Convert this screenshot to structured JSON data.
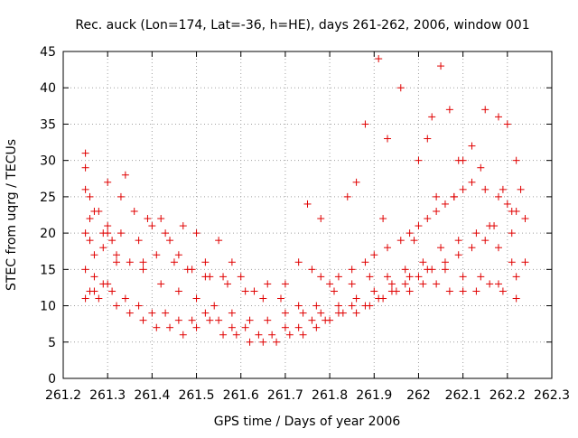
{
  "chart_data": {
    "type": "scatter",
    "title": "Rec. auck (Lon=174, Lat=-36, h=HE), days 261-262, 2006, window 001",
    "xlabel": "GPS time / Days of year 2006",
    "ylabel": "STEC from uqrg / TECUs",
    "xlim": [
      261.2,
      262.3
    ],
    "ylim": [
      0,
      45
    ],
    "xticks": [
      261.2,
      261.3,
      261.4,
      261.5,
      261.6,
      261.7,
      261.8,
      261.9,
      262,
      262.1,
      262.2,
      262.3
    ],
    "xtick_labels": [
      "261.2",
      "261.3",
      "261.4",
      "261.5",
      "261.6",
      "261.7",
      "261.8",
      "261.9",
      "262",
      "262.1",
      "262.2",
      "262.3"
    ],
    "yticks": [
      0,
      5,
      10,
      15,
      20,
      25,
      30,
      35,
      40,
      45
    ],
    "ytick_labels": [
      "0",
      "5",
      "10",
      "15",
      "20",
      "25",
      "30",
      "35",
      "40",
      "45"
    ],
    "grid": true,
    "marker": "plus",
    "color": "#e00000",
    "series": [
      {
        "x": [
          261.25,
          261.25,
          261.25,
          261.25,
          261.26,
          261.26,
          261.27,
          261.27,
          261.28,
          261.29,
          261.3,
          261.31,
          261.32,
          261.34,
          261.36,
          261.38,
          261.4,
          261.42,
          261.44,
          261.46,
          261.48,
          261.5,
          261.52,
          261.55,
          261.58,
          261.6,
          261.63,
          261.66,
          261.7,
          261.73,
          261.76,
          261.78,
          261.8,
          261.82,
          261.85,
          261.88,
          261.9,
          261.93,
          261.96,
          261.98,
          262.0,
          262.02,
          262.04,
          262.06,
          262.08,
          262.1,
          262.12,
          262.15,
          262.18,
          262.2,
          262.22,
          262.24,
          261.25,
          261.26,
          261.28,
          261.3,
          261.32,
          261.35,
          261.38,
          261.41,
          261.44,
          261.47,
          261.5,
          261.53,
          261.56,
          261.59,
          261.62,
          261.65,
          261.68,
          261.71,
          261.74,
          261.77,
          261.8,
          261.83,
          261.86,
          261.89,
          261.92,
          261.95,
          261.98,
          262.01,
          262.04,
          262.07,
          262.1,
          262.13,
          262.16,
          262.19,
          262.22,
          261.25,
          261.27,
          261.29,
          261.31,
          261.34,
          261.37,
          261.4,
          261.43,
          261.46,
          261.49,
          261.52,
          261.55,
          261.58,
          261.61,
          261.64,
          261.67,
          261.7,
          261.73,
          261.76,
          261.79,
          261.82,
          261.85,
          261.88,
          261.91,
          261.94,
          261.97,
          262.0,
          262.03,
          262.06,
          262.09,
          262.12,
          262.15,
          262.18,
          262.21,
          262.24,
          261.26,
          261.29,
          261.32,
          261.35,
          261.38,
          261.42,
          261.46,
          261.5,
          261.54,
          261.58,
          261.62,
          261.66,
          261.7,
          261.74,
          261.78,
          261.82,
          261.86,
          261.9,
          261.94,
          261.98,
          262.02,
          262.06,
          262.1,
          262.14,
          262.18,
          262.22,
          261.27,
          261.3,
          261.33,
          261.37,
          261.41,
          261.45,
          261.49,
          261.53,
          261.57,
          261.61,
          261.65,
          261.69,
          261.73,
          261.77,
          261.81,
          261.85,
          261.89,
          261.93,
          261.97,
          262.01,
          262.05,
          262.09,
          262.13,
          262.17,
          262.21,
          261.88,
          261.91,
          261.96,
          262.0,
          262.03,
          262.05,
          262.07,
          262.09,
          262.12,
          262.15,
          262.18,
          262.2,
          262.22,
          261.84,
          261.86,
          261.93,
          262.02,
          262.1,
          262.14,
          262.19,
          262.23,
          261.75,
          261.78,
          261.92,
          261.99,
          262.04,
          262.08,
          262.16,
          262.21,
          261.3,
          261.33,
          261.39,
          261.43,
          261.47,
          261.52,
          261.56
        ],
        "y": [
          31,
          29,
          26,
          20,
          25,
          22,
          17,
          12,
          23,
          20,
          27,
          19,
          16,
          28,
          23,
          16,
          21,
          22,
          19,
          17,
          15,
          20,
          14,
          19,
          16,
          14,
          12,
          13,
          13,
          16,
          15,
          14,
          13,
          14,
          15,
          16,
          17,
          18,
          19,
          20,
          21,
          22,
          23,
          24,
          25,
          26,
          27,
          26,
          25,
          24,
          23,
          22,
          11,
          12,
          11,
          13,
          10,
          9,
          8,
          7,
          7,
          6,
          7,
          8,
          6,
          6,
          5,
          5,
          5,
          6,
          6,
          7,
          8,
          9,
          9,
          10,
          11,
          12,
          12,
          13,
          13,
          12,
          12,
          12,
          13,
          12,
          11,
          15,
          14,
          13,
          12,
          11,
          10,
          9,
          9,
          8,
          8,
          9,
          8,
          7,
          7,
          6,
          6,
          7,
          7,
          8,
          8,
          9,
          10,
          10,
          11,
          12,
          13,
          14,
          15,
          16,
          17,
          18,
          19,
          18,
          16,
          16,
          19,
          18,
          17,
          16,
          15,
          13,
          12,
          11,
          10,
          9,
          8,
          8,
          9,
          9,
          9,
          10,
          11,
          12,
          13,
          14,
          15,
          15,
          14,
          14,
          13,
          14,
          23,
          21,
          20,
          19,
          17,
          16,
          15,
          14,
          13,
          12,
          11,
          11,
          10,
          10,
          12,
          13,
          14,
          14,
          15,
          16,
          18,
          19,
          20,
          21,
          20,
          35,
          44,
          40,
          30,
          36,
          43,
          37,
          30,
          32,
          37,
          36,
          35,
          30,
          25,
          27,
          33,
          33,
          30,
          29,
          26,
          26,
          24,
          22,
          22,
          19,
          25,
          25,
          21,
          23,
          20,
          25,
          22,
          20,
          21,
          16,
          14
        ],
        "name": ""
      }
    ]
  }
}
